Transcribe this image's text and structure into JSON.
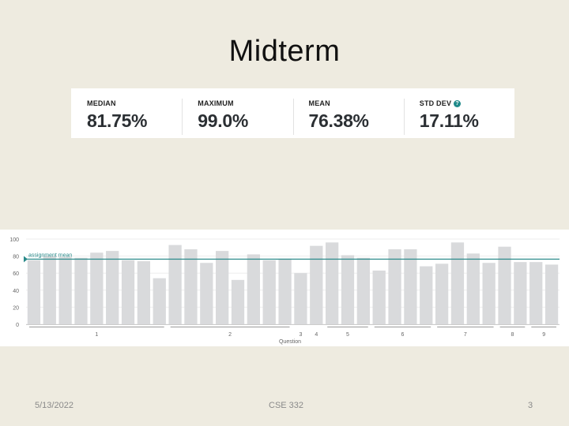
{
  "slide": {
    "title": "Midterm",
    "footer_date": "5/13/2022",
    "footer_course": "CSE 332",
    "footer_page": "3"
  },
  "stats": [
    {
      "label": "MEDIAN",
      "value": "81.75%"
    },
    {
      "label": "MAXIMUM",
      "value": "99.0%"
    },
    {
      "label": "MEAN",
      "value": "76.38%"
    },
    {
      "label": "STD DEV",
      "value": "17.11%",
      "help_icon": "help-icon"
    }
  ],
  "chart_data": {
    "type": "bar",
    "ylim": [
      0,
      100
    ],
    "yticks": [
      0,
      20,
      40,
      60,
      80,
      100
    ],
    "xlabel": "Question",
    "reference_line": {
      "label": "assignment mean",
      "value": 76.4
    },
    "values": [
      75,
      80,
      79,
      78,
      84,
      86,
      75,
      74,
      54,
      93,
      88,
      72,
      86,
      52,
      82,
      75,
      77,
      60,
      92,
      96,
      81,
      78,
      63,
      88,
      88,
      68,
      71,
      96,
      83,
      72,
      91,
      73,
      73,
      70
    ],
    "groups": [
      {
        "label": "1",
        "from": 0,
        "to": 8
      },
      {
        "label": "2",
        "from": 9,
        "to": 16
      },
      {
        "label": "3",
        "from": 17,
        "to": 17
      },
      {
        "label": "4",
        "from": 18,
        "to": 18
      },
      {
        "label": "5",
        "from": 19,
        "to": 21
      },
      {
        "label": "6",
        "from": 22,
        "to": 25
      },
      {
        "label": "7",
        "from": 26,
        "to": 29
      },
      {
        "label": "8",
        "from": 30,
        "to": 31
      },
      {
        "label": "9",
        "from": 32,
        "to": 33
      }
    ],
    "colors": {
      "bar": "#d9dadc",
      "mean_line": "#2a8a8a",
      "axis_text": "#666666",
      "grid": "#eeeeee"
    }
  }
}
